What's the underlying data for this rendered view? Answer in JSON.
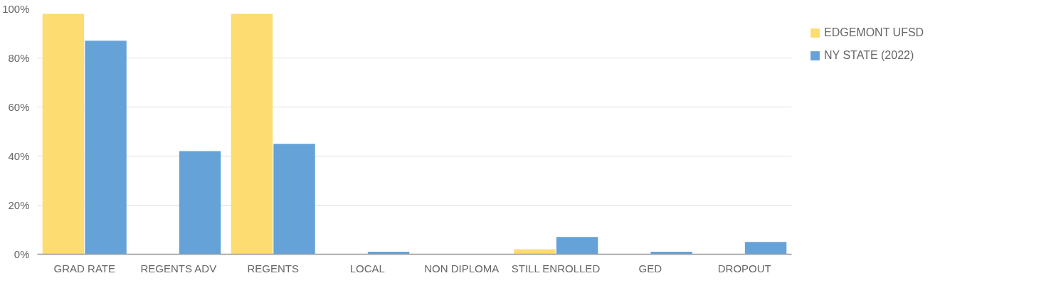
{
  "chart_data": {
    "type": "bar",
    "categories": [
      "GRAD RATE",
      "REGENTS ADV",
      "REGENTS",
      "LOCAL",
      "NON DIPLOMA",
      "STILL ENROLLED",
      "GED",
      "DROPOUT"
    ],
    "series": [
      {
        "name": "EDGEMONT UFSD",
        "color": "#fddc72",
        "values": [
          98,
          0,
          98,
          0,
          0,
          2,
          0,
          0
        ]
      },
      {
        "name": "NY STATE (2022)",
        "color": "#65a2d8",
        "values": [
          87,
          42,
          45,
          1,
          0,
          7,
          1,
          5
        ]
      }
    ],
    "ylim": [
      0,
      100
    ],
    "yticks": [
      {
        "value": 0,
        "label": "0%"
      },
      {
        "value": 20,
        "label": "20%"
      },
      {
        "value": 40,
        "label": "40%"
      },
      {
        "value": 60,
        "label": "60%"
      },
      {
        "value": 80,
        "label": "80%"
      },
      {
        "value": 100,
        "label": "100%"
      }
    ],
    "grid": "y",
    "legend": "top right"
  }
}
